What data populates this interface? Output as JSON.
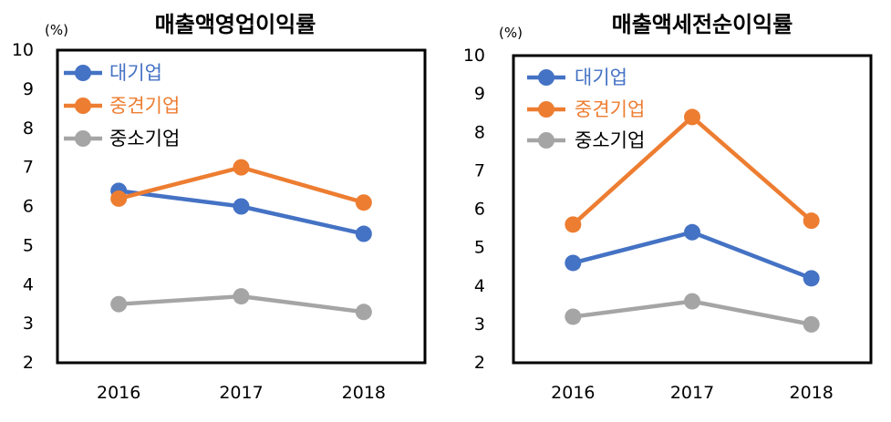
{
  "chart_data": [
    {
      "type": "line",
      "title": "매출액영업이익률",
      "xlabel": "",
      "ylabel": "(%)",
      "categories": [
        "2016",
        "2017",
        "2018"
      ],
      "ylim": [
        2,
        10
      ],
      "yticks": [
        2,
        3,
        4,
        5,
        6,
        7,
        8,
        9,
        10
      ],
      "grid": false,
      "series": [
        {
          "name": "대기업",
          "values": [
            6.4,
            6.0,
            5.3
          ],
          "color": "#4472C4",
          "label_color": "#4472C4"
        },
        {
          "name": "중견기업",
          "values": [
            6.2,
            7.0,
            6.1
          ],
          "color": "#ED7D31",
          "label_color": "#ED7D31"
        },
        {
          "name": "중소기업",
          "values": [
            3.5,
            3.7,
            3.3
          ],
          "color": "#A5A5A5",
          "label_color": "#000000"
        }
      ]
    },
    {
      "type": "line",
      "title": "매출액세전순이익률",
      "xlabel": "",
      "ylabel": "(%)",
      "categories": [
        "2016",
        "2017",
        "2018"
      ],
      "ylim": [
        2,
        10
      ],
      "yticks": [
        2,
        3,
        4,
        5,
        6,
        7,
        8,
        9,
        10
      ],
      "grid": false,
      "series": [
        {
          "name": "대기업",
          "values": [
            4.6,
            5.4,
            4.2
          ],
          "color": "#4472C4",
          "label_color": "#4472C4"
        },
        {
          "name": "중견기업",
          "values": [
            5.6,
            8.4,
            5.7
          ],
          "color": "#ED7D31",
          "label_color": "#ED7D31"
        },
        {
          "name": "중소기업",
          "values": [
            3.2,
            3.6,
            3.0
          ],
          "color": "#A5A5A5",
          "label_color": "#000000"
        }
      ]
    }
  ]
}
